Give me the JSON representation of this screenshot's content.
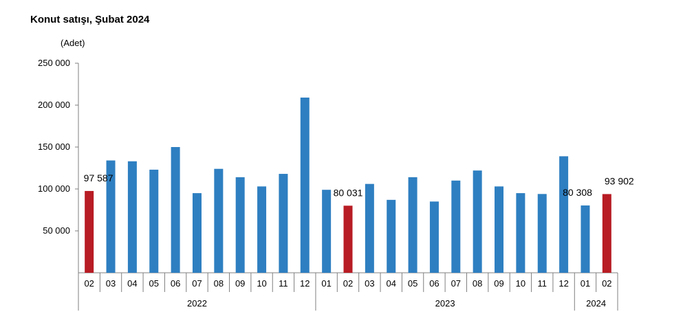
{
  "title": "Konut satışı, Şubat 2024",
  "chart_data": {
    "type": "bar",
    "title": "Konut satışı, Şubat 2024",
    "unit_label": "(Adet)",
    "ylim": [
      0,
      250000
    ],
    "yticks": [
      50000,
      100000,
      150000,
      200000,
      250000
    ],
    "ytick_labels": [
      "50 000",
      "100 000",
      "150 000",
      "200 000",
      "250 000"
    ],
    "grid": false,
    "categories": [
      "02",
      "03",
      "04",
      "05",
      "06",
      "07",
      "08",
      "09",
      "10",
      "11",
      "12",
      "01",
      "02",
      "03",
      "04",
      "05",
      "06",
      "07",
      "08",
      "09",
      "10",
      "11",
      "12",
      "01",
      "02"
    ],
    "values": [
      97587,
      134000,
      133000,
      123000,
      150000,
      95000,
      124000,
      114000,
      103000,
      118000,
      209000,
      99000,
      80031,
      106000,
      87000,
      114000,
      85000,
      110000,
      122000,
      103000,
      95000,
      94000,
      139000,
      80308,
      93902
    ],
    "groups": [
      {
        "label": "2022",
        "count": 11
      },
      {
        "label": "2023",
        "count": 12
      },
      {
        "label": "2024",
        "count": 2
      }
    ],
    "highlight_indices": [
      0,
      12,
      24
    ],
    "data_labels": [
      {
        "index": 0,
        "text": "97 587"
      },
      {
        "index": 12,
        "text": "80 031"
      },
      {
        "index": 23,
        "text": "80 308"
      },
      {
        "index": 24,
        "text": "93 902"
      }
    ],
    "colors": {
      "bar": "#2e7fc1",
      "highlight": "#b81c24",
      "axis": "#7f7f7f"
    }
  }
}
